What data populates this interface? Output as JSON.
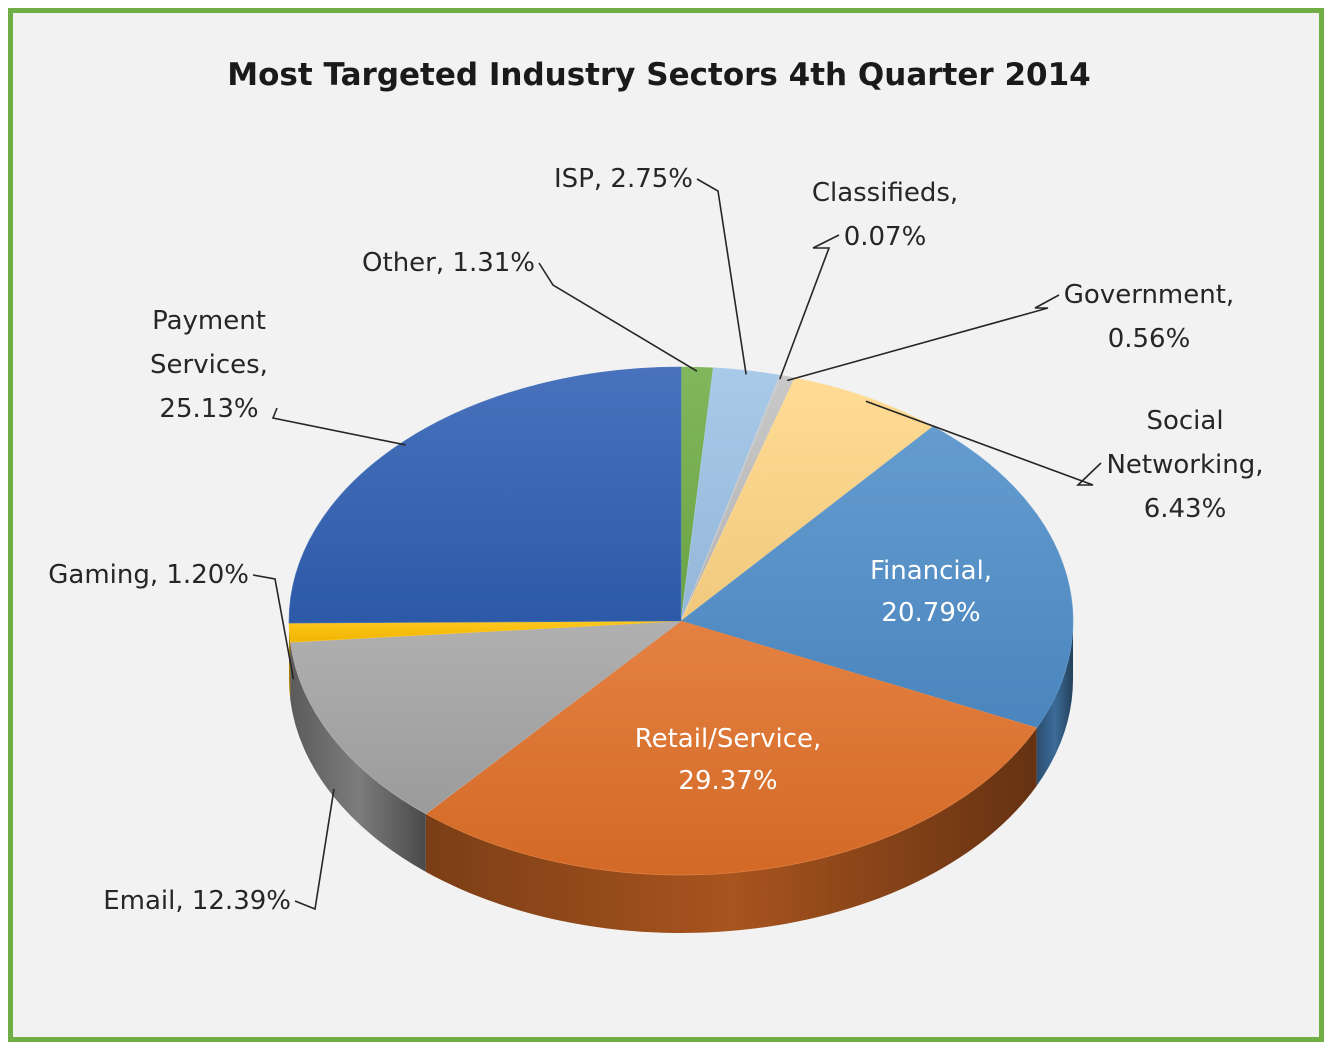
{
  "chart_data": {
    "type": "pie",
    "title": "Most Targeted Industry Sectors 4th Quarter 2014",
    "slices": [
      {
        "category": "Other",
        "value": 1.31,
        "label_lines": [
          "Other, 1.31%"
        ],
        "color": "#70ad47"
      },
      {
        "category": "ISP",
        "value": 2.75,
        "label_lines": [
          "ISP, 2.75%"
        ],
        "color": "#9dc3e6"
      },
      {
        "category": "Classifieds",
        "value": 0.07,
        "label_lines": [
          "Classifieds,",
          "0.07%"
        ],
        "color": "#c9c9c9"
      },
      {
        "category": "Government",
        "value": 0.56,
        "label_lines": [
          "Government,",
          "0.56%"
        ],
        "color": "#c0c0c0"
      },
      {
        "category": "Social Networking",
        "value": 6.43,
        "label_lines": [
          "Social",
          "Networking,",
          "6.43%"
        ],
        "color": "#ffd685"
      },
      {
        "category": "Financial",
        "value": 20.79,
        "label_lines": [
          "Financial,",
          "20.79%"
        ],
        "color": "#4f8ec9"
      },
      {
        "category": "Retail/Service",
        "value": 29.37,
        "label_lines": [
          "Retail/Service,",
          "29.37%"
        ],
        "color": "#e07028"
      },
      {
        "category": "Email",
        "value": 12.39,
        "label_lines": [
          "Email, 12.39%"
        ],
        "color": "#a5a5a5"
      },
      {
        "category": "Gaming",
        "value": 1.2,
        "label_lines": [
          "Gaming, 1.20%"
        ],
        "color": "#ffc000"
      },
      {
        "category": "Payment Services",
        "value": 25.13,
        "label_lines": [
          "Payment",
          "Services,",
          "25.13%"
        ],
        "color": "#2f5fb3"
      }
    ],
    "legend": "none",
    "style": "3d-pie"
  },
  "colors": {
    "border": "#70ad47",
    "background": "#f2f2f2"
  }
}
